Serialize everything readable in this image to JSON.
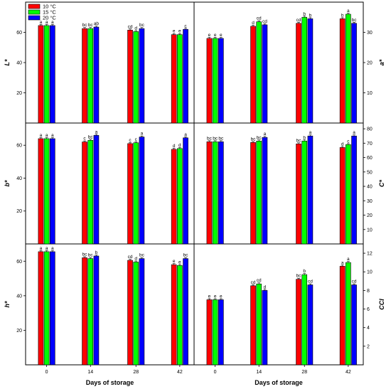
{
  "xlabel": "Days of storage",
  "legend": {
    "entries": [
      {
        "label": "10 °C",
        "color": "#ff0000"
      },
      {
        "label": "15 °C",
        "color": "#00ff00"
      },
      {
        "label": "20 °C",
        "color": "#0000ff"
      }
    ],
    "placement": "top-left of first panel"
  },
  "chart_data": [
    {
      "type": "bar",
      "panel": "L*",
      "ylabel": "L*",
      "axis_side": "left",
      "categories": [
        "0",
        "14",
        "28",
        "42"
      ],
      "ylim": [
        0,
        80
      ],
      "yticks": [
        20,
        40,
        60
      ],
      "series": [
        {
          "name": "10 °C",
          "values": [
            64.5,
            62.5,
            61.5,
            58.5
          ],
          "labels": [
            "a",
            "bc",
            "cd",
            "e"
          ]
        },
        {
          "name": "15 °C",
          "values": [
            64.5,
            62.5,
            60.5,
            58.5
          ],
          "labels": [
            "a",
            "bc",
            "d",
            "e"
          ]
        },
        {
          "name": "20 °C",
          "values": [
            64.5,
            63.5,
            62.5,
            62.0
          ],
          "labels": [
            "a",
            "ab",
            "bc",
            "c"
          ]
        }
      ]
    },
    {
      "type": "bar",
      "panel": "a*",
      "ylabel": "a*",
      "axis_side": "right",
      "categories": [
        "0",
        "14",
        "28",
        "42"
      ],
      "ylim": [
        0,
        40
      ],
      "yticks": [
        10,
        20,
        30
      ],
      "series": [
        {
          "name": "10 °C",
          "values": [
            28.0,
            32.0,
            33.0,
            34.5
          ],
          "labels": [
            "e",
            "d",
            "cd",
            "b"
          ]
        },
        {
          "name": "15 °C",
          "values": [
            28.0,
            33.5,
            35.0,
            36.0
          ],
          "labels": [
            "e",
            "cd",
            "b",
            "a"
          ]
        },
        {
          "name": "20 °C",
          "values": [
            28.0,
            32.5,
            34.5,
            33.0
          ],
          "labels": [
            "e",
            "cd",
            "b",
            "bc"
          ]
        }
      ]
    },
    {
      "type": "bar",
      "panel": "b*",
      "ylabel": "b*",
      "axis_side": "left",
      "categories": [
        "0",
        "14",
        "28",
        "42"
      ],
      "ylim": [
        0,
        73.5
      ],
      "yticks": [
        20,
        40,
        60
      ],
      "series": [
        {
          "name": "10 °C",
          "values": [
            64.0,
            62.0,
            61.0,
            57.5
          ],
          "labels": [
            "a",
            "c",
            "c",
            "d"
          ]
        },
        {
          "name": "15 °C",
          "values": [
            64.0,
            63.0,
            61.5,
            58.0
          ],
          "labels": [
            "a",
            "bc",
            "c",
            "d"
          ]
        },
        {
          "name": "20 °C",
          "values": [
            64.0,
            66.0,
            65.0,
            64.5
          ],
          "labels": [
            "a",
            "a",
            "a",
            "a"
          ]
        }
      ]
    },
    {
      "type": "bar",
      "panel": "C*",
      "ylabel": "C*",
      "axis_side": "right",
      "categories": [
        "0",
        "14",
        "28",
        "42"
      ],
      "ylim": [
        0,
        84
      ],
      "yticks": [
        10,
        20,
        30,
        40,
        50,
        60,
        70,
        80
      ],
      "series": [
        {
          "name": "10 °C",
          "values": [
            71.0,
            70.5,
            69.5,
            67.0
          ],
          "labels": [
            "bc",
            "bc",
            "bc",
            "d"
          ]
        },
        {
          "name": "15 °C",
          "values": [
            71.0,
            71.5,
            71.5,
            69.0
          ],
          "labels": [
            "bc",
            "bc",
            "b",
            "c"
          ]
        },
        {
          "name": "20 °C",
          "values": [
            71.0,
            74.0,
            75.0,
            75.0
          ],
          "labels": [
            "bc",
            "a",
            "a",
            "a"
          ]
        }
      ]
    },
    {
      "type": "bar",
      "panel": "h*",
      "ylabel": "h*",
      "axis_side": "left",
      "categories": [
        "0",
        "14",
        "28",
        "42"
      ],
      "ylim": [
        0,
        70
      ],
      "yticks": [
        20,
        40,
        60
      ],
      "series": [
        {
          "name": "10 °C",
          "values": [
            65.5,
            62.0,
            60.5,
            58.0
          ],
          "labels": [
            "a",
            "bc",
            "cd",
            "e"
          ]
        },
        {
          "name": "15 °C",
          "values": [
            65.5,
            61.5,
            59.5,
            57.5
          ],
          "labels": [
            "a",
            "bc",
            "d",
            "e"
          ]
        },
        {
          "name": "20 °C",
          "values": [
            65.5,
            63.0,
            61.5,
            61.5
          ],
          "labels": [
            "a",
            "b",
            "bc",
            "bc"
          ]
        }
      ]
    },
    {
      "type": "bar",
      "panel": "CCI",
      "ylabel": "CCI",
      "axis_side": "right",
      "categories": [
        "0",
        "14",
        "28",
        "42"
      ],
      "ylim": [
        0,
        13
      ],
      "yticks": [
        2,
        4,
        6,
        8,
        10,
        12
      ],
      "series": [
        {
          "name": "10 °C",
          "values": [
            7.0,
            8.5,
            9.2,
            10.6
          ],
          "labels": [
            "e",
            "cd",
            "bc",
            "a"
          ]
        },
        {
          "name": "15 °C",
          "values": [
            7.0,
            8.7,
            9.7,
            11.0
          ],
          "labels": [
            "e",
            "cd",
            "b",
            "a"
          ]
        },
        {
          "name": "20 °C",
          "values": [
            7.0,
            8.0,
            8.6,
            8.6
          ],
          "labels": [
            "e",
            "d",
            "cd",
            "cd"
          ]
        }
      ]
    }
  ]
}
